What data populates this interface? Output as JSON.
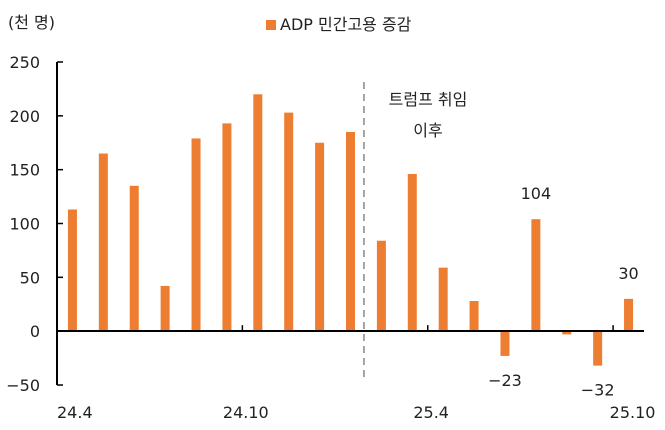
{
  "chart_data": {
    "type": "bar",
    "unit_label": "(천 명)",
    "legend": {
      "label": "ADP 민간고용 증감",
      "placement": "top"
    },
    "series_color": "#ED7D31",
    "categories": [
      "24.4",
      "24.5",
      "24.6",
      "24.7",
      "24.8",
      "24.9",
      "24.10",
      "24.11",
      "24.12",
      "25.1",
      "25.2",
      "25.3",
      "25.4",
      "25.5",
      "25.6",
      "25.7",
      "25.8",
      "25.9",
      "25.10"
    ],
    "values": [
      113,
      165,
      135,
      42,
      179,
      193,
      220,
      203,
      175,
      185,
      84,
      146,
      59,
      28,
      -23,
      104,
      -3,
      -32,
      30
    ],
    "xtick_labels": [
      {
        "category": "24.4",
        "label": "24.4"
      },
      {
        "category": "24.10",
        "label": "24.10"
      },
      {
        "category": "25.4",
        "label": "25.4"
      },
      {
        "category": "25.10",
        "label": "25.10"
      }
    ],
    "ylim": [
      -50,
      250
    ],
    "yticks": [
      -50,
      0,
      50,
      100,
      150,
      200,
      250
    ],
    "grid": false,
    "data_labels": [
      {
        "category": "25.6",
        "label": "-23"
      },
      {
        "category": "25.7",
        "label": "104"
      },
      {
        "category": "25.9",
        "label": "-32"
      },
      {
        "category": "25.10",
        "label": "30"
      }
    ],
    "annotation": {
      "after_category": "25.1",
      "lines": [
        "트럼프 취임",
        "이후"
      ]
    }
  }
}
